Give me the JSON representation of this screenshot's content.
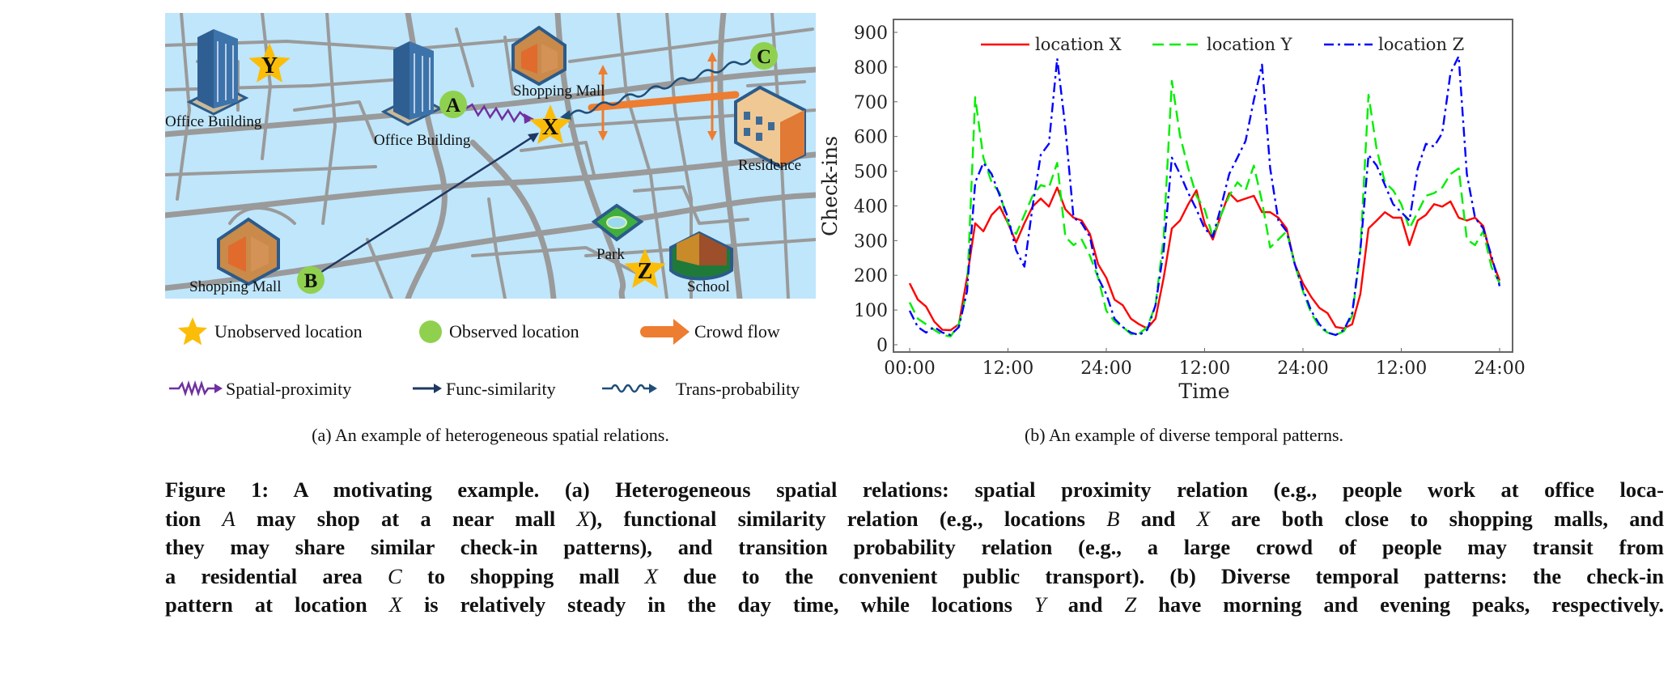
{
  "panel_a": {
    "map_labels": {
      "office_building_1": "Office Building",
      "office_building_2": "Office Building",
      "shopping_mall_1": "Shopping Mall",
      "shopping_mall_2": "Shopping Mall",
      "residence": "Residence",
      "park": "Park",
      "school": "School"
    },
    "locations": {
      "A": "A",
      "B": "B",
      "C": "C",
      "X": "X",
      "Y": "Y",
      "Z": "Z"
    },
    "legend": [
      {
        "label": "Unobserved location",
        "icon": "star-icon",
        "color": "#fbbd08"
      },
      {
        "label": "Observed location",
        "icon": "circle-icon",
        "color": "#8fd14f"
      },
      {
        "label": "Crowd flow",
        "icon": "thick-arrow-icon",
        "color": "#ed7d31"
      },
      {
        "label": "Spatial-proximity",
        "icon": "zigzag-arrow-icon",
        "color": "#7030a0"
      },
      {
        "label": "Func-similarity",
        "icon": "straight-arrow-icon",
        "color": "#1f3864"
      },
      {
        "label": "Trans-probability",
        "icon": "wavy-arrow-icon",
        "color": "#1f4e79"
      }
    ],
    "caption": "(a)  An example of heterogeneous spatial relations."
  },
  "panel_b": {
    "caption": "(b)  An example of diverse temporal patterns."
  },
  "chart_data": {
    "type": "line",
    "xlabel": "Time",
    "ylabel": "Check-ins",
    "ylim": [
      0,
      900
    ],
    "yticks": [
      "0",
      "100",
      "200",
      "300",
      "400",
      "500",
      "600",
      "700",
      "800",
      "900"
    ],
    "xticks": [
      "00:00",
      "12:00",
      "24:00",
      "12:00",
      "24:00",
      "12:00",
      "24:00"
    ],
    "grid": false,
    "legend_position": "top-center",
    "x": [
      "00:00",
      "01:00",
      "02:00",
      "03:00",
      "04:00",
      "05:00",
      "06:00",
      "07:00",
      "08:00",
      "09:00",
      "10:00",
      "11:00",
      "12:00",
      "13:00",
      "14:00",
      "15:00",
      "16:00",
      "17:00",
      "18:00",
      "19:00",
      "20:00",
      "21:00",
      "22:00",
      "23:00",
      "00:00",
      "01:00",
      "02:00",
      "03:00",
      "04:00",
      "05:00",
      "06:00",
      "07:00",
      "08:00",
      "09:00",
      "10:00",
      "11:00",
      "12:00",
      "13:00",
      "14:00",
      "15:00",
      "16:00",
      "17:00",
      "18:00",
      "19:00",
      "20:00",
      "21:00",
      "22:00",
      "23:00",
      "00:00",
      "01:00",
      "02:00",
      "03:00",
      "04:00",
      "05:00",
      "06:00",
      "07:00",
      "08:00",
      "09:00",
      "10:00",
      "11:00",
      "12:00",
      "13:00",
      "14:00",
      "15:00",
      "16:00",
      "17:00",
      "18:00",
      "19:00",
      "20:00",
      "21:00",
      "22:00",
      "23:00",
      "24:00"
    ],
    "series": [
      {
        "name": "location X",
        "color": "#ff0000",
        "style": "solid",
        "values": [
          177,
          130,
          110,
          67,
          43,
          42,
          59,
          193,
          350,
          327,
          374,
          398,
          350,
          295,
          350,
          398,
          421,
          398,
          453,
          390,
          366,
          358,
          319,
          232,
          193,
          130,
          114,
          75,
          59,
          47,
          75,
          193,
          335,
          358,
          405,
          445,
          350,
          303,
          374,
          437,
          413,
          421,
          429,
          382,
          382,
          366,
          335,
          232,
          177,
          138,
          106,
          91,
          51,
          47,
          59,
          146,
          335,
          358,
          382,
          366,
          366,
          287,
          358,
          374,
          405,
          398,
          413,
          366,
          358,
          366,
          342,
          248,
          185
        ]
      },
      {
        "name": "location Y",
        "color": "#00ee00",
        "style": "dashed",
        "values": [
          122,
          75,
          59,
          43,
          28,
          24,
          59,
          154,
          713,
          539,
          468,
          437,
          350,
          319,
          374,
          429,
          460,
          453,
          524,
          311,
          287,
          303,
          256,
          193,
          98,
          67,
          51,
          31,
          31,
          51,
          114,
          311,
          760,
          602,
          508,
          429,
          390,
          311,
          374,
          429,
          468,
          445,
          516,
          413,
          280,
          303,
          327,
          232,
          154,
          91,
          51,
          35,
          28,
          39,
          83,
          272,
          720,
          563,
          468,
          445,
          405,
          335,
          382,
          429,
          437,
          453,
          492,
          508,
          303,
          287,
          327,
          224,
          177
        ]
      },
      {
        "name": "location Z",
        "color": "#0000ff",
        "style": "dashdot",
        "values": [
          98,
          51,
          35,
          51,
          35,
          28,
          51,
          154,
          468,
          524,
          492,
          429,
          366,
          272,
          225,
          398,
          547,
          579,
          825,
          626,
          366,
          350,
          311,
          193,
          146,
          75,
          51,
          35,
          28,
          43,
          114,
          272,
          539,
          492,
          437,
          390,
          335,
          311,
          398,
          492,
          539,
          587,
          705,
          807,
          508,
          358,
          327,
          232,
          161,
          98,
          59,
          35,
          28,
          43,
          91,
          272,
          547,
          516,
          460,
          405,
          382,
          358,
          508,
          579,
          571,
          610,
          783,
          831,
          492,
          366,
          335,
          256,
          169
        ]
      }
    ]
  },
  "figure_caption": {
    "lines": [
      [
        {
          "t": "Figure 1: A motivating example. (a) Heterogeneous spatial relations: spatial proximity relation (e.g., people work at office loca-"
        }
      ],
      [
        {
          "t": "tion "
        },
        {
          "t": "A",
          "i": true
        },
        {
          "t": " may shop at a near mall "
        },
        {
          "t": "X",
          "i": true
        },
        {
          "t": "), functional similarity relation (e.g., locations "
        },
        {
          "t": "B",
          "i": true
        },
        {
          "t": " and "
        },
        {
          "t": "X",
          "i": true
        },
        {
          "t": " are both close to shopping malls, and"
        }
      ],
      [
        {
          "t": "they may share similar check-in patterns), and transition probability relation (e.g., a large crowd of people may transit from"
        }
      ],
      [
        {
          "t": "a residential area "
        },
        {
          "t": "C",
          "i": true
        },
        {
          "t": " to shopping mall "
        },
        {
          "t": "X",
          "i": true
        },
        {
          "t": " due to the convenient public transport). (b) Diverse temporal patterns: the check-in"
        }
      ],
      [
        {
          "t": "pattern at location "
        },
        {
          "t": "X",
          "i": true
        },
        {
          "t": " is relatively steady in the day time, while locations "
        },
        {
          "t": "Y",
          "i": true
        },
        {
          "t": " and "
        },
        {
          "t": "Z",
          "i": true
        },
        {
          "t": " have morning and evening peaks, respectively."
        }
      ]
    ]
  }
}
